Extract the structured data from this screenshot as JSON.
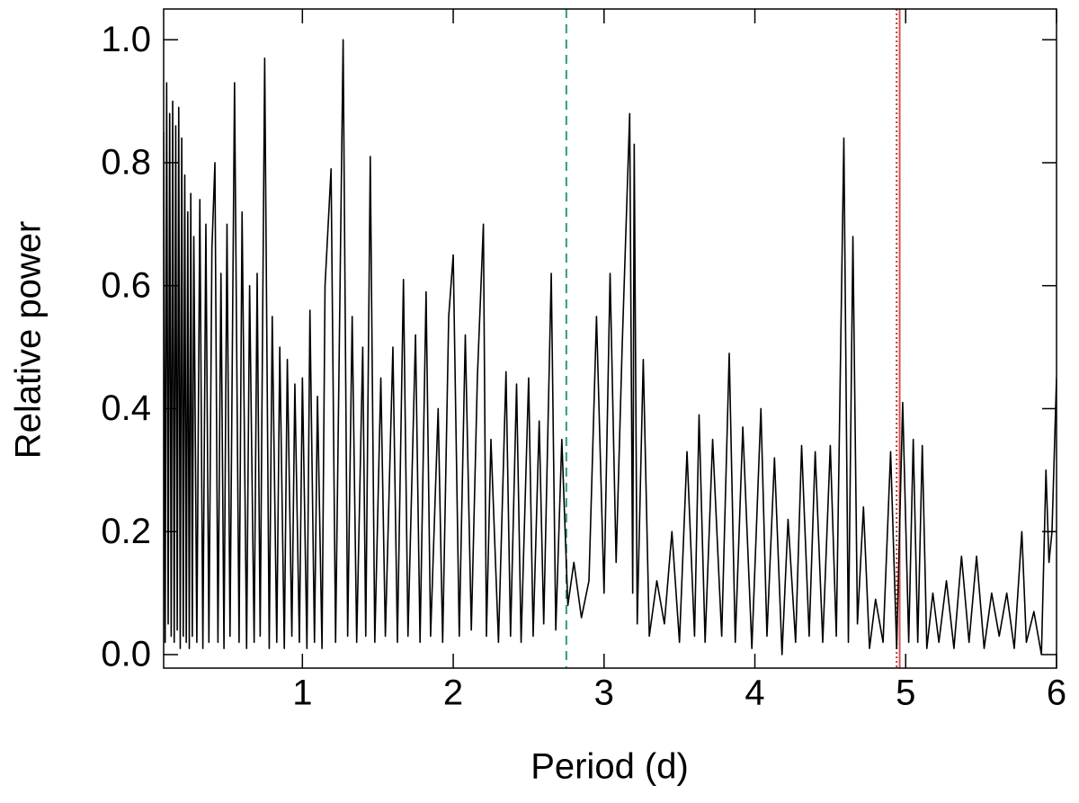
{
  "chart_data": {
    "type": "line",
    "xlabel": "Period (d)",
    "ylabel": "Relative power",
    "xlim": [
      0.08,
      6
    ],
    "ylim": [
      -0.022,
      1.05
    ],
    "xticks": [
      1,
      2,
      3,
      4,
      5,
      6
    ],
    "yticks": [
      {
        "value": 0,
        "label": "0.0"
      },
      0.2,
      0.4,
      0.6,
      0.8,
      {
        "value": 1,
        "label": "1.0"
      }
    ],
    "color": "#000000",
    "x": [
      0.08,
      0.09,
      0.1,
      0.11,
      0.12,
      0.13,
      0.14,
      0.15,
      0.16,
      0.17,
      0.18,
      0.19,
      0.2,
      0.21,
      0.22,
      0.23,
      0.24,
      0.25,
      0.26,
      0.27,
      0.28,
      0.3,
      0.32,
      0.34,
      0.36,
      0.38,
      0.4,
      0.42,
      0.44,
      0.46,
      0.48,
      0.5,
      0.52,
      0.55,
      0.58,
      0.6,
      0.63,
      0.65,
      0.68,
      0.7,
      0.72,
      0.75,
      0.78,
      0.8,
      0.83,
      0.85,
      0.88,
      0.9,
      0.93,
      0.95,
      0.98,
      1.0,
      1.03,
      1.05,
      1.08,
      1.1,
      1.13,
      1.15,
      1.19,
      1.22,
      1.27,
      1.3,
      1.33,
      1.36,
      1.4,
      1.42,
      1.45,
      1.48,
      1.52,
      1.55,
      1.6,
      1.63,
      1.67,
      1.7,
      1.75,
      1.78,
      1.82,
      1.85,
      1.9,
      1.93,
      1.97,
      2.0,
      2.04,
      2.08,
      2.12,
      2.16,
      2.2,
      2.22,
      2.25,
      2.3,
      2.35,
      2.38,
      2.42,
      2.45,
      2.5,
      2.53,
      2.57,
      2.6,
      2.65,
      2.68,
      2.72,
      2.76,
      2.8,
      2.85,
      2.9,
      2.95,
      3.0,
      3.04,
      3.08,
      3.12,
      3.17,
      3.19,
      3.2,
      3.22,
      3.26,
      3.3,
      3.35,
      3.4,
      3.45,
      3.5,
      3.55,
      3.6,
      3.63,
      3.67,
      3.72,
      3.78,
      3.83,
      3.87,
      3.92,
      3.98,
      4.04,
      4.08,
      4.13,
      4.18,
      4.22,
      4.27,
      4.31,
      4.36,
      4.4,
      4.45,
      4.5,
      4.54,
      4.59,
      4.62,
      4.65,
      4.68,
      4.72,
      4.76,
      4.8,
      4.85,
      4.9,
      4.94,
      4.98,
      5.02,
      5.05,
      5.08,
      5.11,
      5.14,
      5.18,
      5.22,
      5.27,
      5.32,
      5.37,
      5.42,
      5.47,
      5.52,
      5.57,
      5.62,
      5.67,
      5.72,
      5.77,
      5.8,
      5.85,
      5.9,
      5.93,
      5.95,
      5.97,
      6.0
    ],
    "values": [
      0.85,
      0.02,
      0.93,
      0.05,
      0.88,
      0.03,
      0.9,
      0.02,
      0.86,
      0.04,
      0.89,
      0.01,
      0.84,
      0.03,
      0.78,
      0.02,
      0.72,
      0.01,
      0.75,
      0.03,
      0.68,
      0.02,
      0.74,
      0.01,
      0.7,
      0.02,
      0.66,
      0.8,
      0.02,
      0.62,
      0.01,
      0.7,
      0.03,
      0.93,
      0.02,
      0.72,
      0.01,
      0.6,
      0.02,
      0.62,
      0.03,
      0.97,
      0.01,
      0.55,
      0.02,
      0.5,
      0.01,
      0.48,
      0.03,
      0.44,
      0.02,
      0.45,
      0.01,
      0.56,
      0.02,
      0.42,
      0.01,
      0.6,
      0.79,
      0.02,
      1.0,
      0.03,
      0.55,
      0.02,
      0.5,
      0.03,
      0.81,
      0.02,
      0.45,
      0.03,
      0.5,
      0.02,
      0.61,
      0.03,
      0.52,
      0.02,
      0.59,
      0.03,
      0.4,
      0.02,
      0.55,
      0.65,
      0.03,
      0.52,
      0.04,
      0.45,
      0.7,
      0.03,
      0.35,
      0.02,
      0.46,
      0.03,
      0.44,
      0.02,
      0.45,
      0.03,
      0.38,
      0.05,
      0.62,
      0.04,
      0.35,
      0.08,
      0.15,
      0.06,
      0.12,
      0.55,
      0.1,
      0.62,
      0.15,
      0.5,
      0.88,
      0.1,
      0.83,
      0.05,
      0.48,
      0.03,
      0.12,
      0.05,
      0.2,
      0.02,
      0.33,
      0.03,
      0.39,
      0.02,
      0.35,
      0.03,
      0.49,
      0.02,
      0.37,
      0.01,
      0.4,
      0.03,
      0.32,
      0.0,
      0.22,
      0.02,
      0.34,
      0.03,
      0.33,
      0.02,
      0.34,
      0.03,
      0.84,
      0.02,
      0.68,
      0.05,
      0.24,
      0.01,
      0.09,
      0.02,
      0.33,
      0.01,
      0.41,
      0.02,
      0.35,
      0.02,
      0.34,
      0.01,
      0.1,
      0.02,
      0.12,
      0.01,
      0.16,
      0.02,
      0.16,
      0.01,
      0.1,
      0.03,
      0.1,
      0.01,
      0.2,
      0.02,
      0.07,
      0.0,
      0.3,
      0.15,
      0.2,
      0.45
    ],
    "vlines": [
      {
        "x": 2.75,
        "color": "#2a9d7c",
        "style": "dashed"
      },
      {
        "x": 4.94,
        "color": "#c0392b",
        "style": "dotted"
      },
      {
        "x": 4.96,
        "color": "#d9534f",
        "style": "solid"
      }
    ]
  }
}
